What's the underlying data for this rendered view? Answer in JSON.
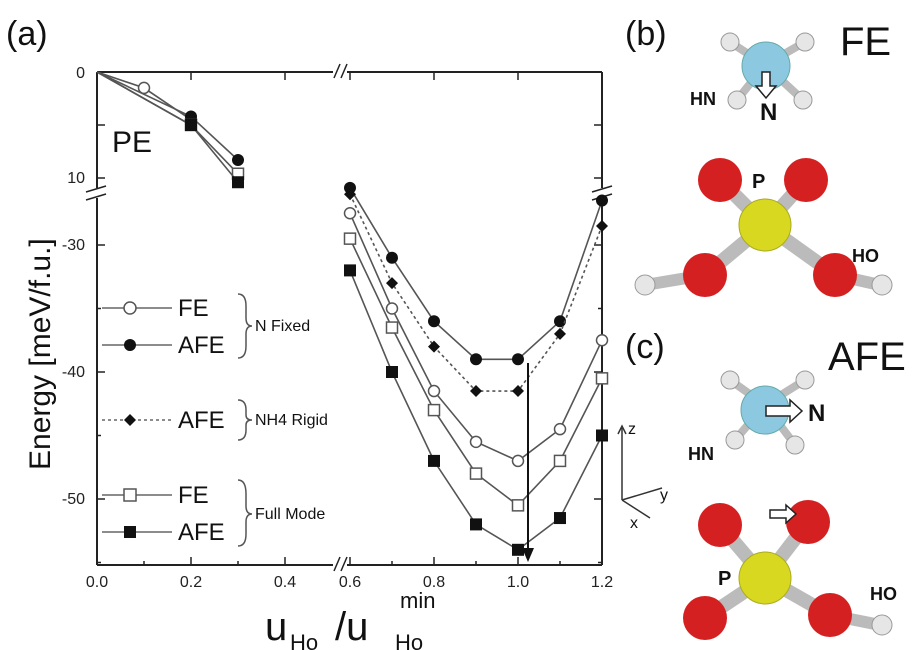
{
  "panels": {
    "a": "(a)",
    "b": "(b)",
    "c": "(c)",
    "b_title": "FE",
    "c_title": "AFE"
  },
  "axes": {
    "xlabel_base": "u",
    "xlabel_sub": "Ho",
    "xlabel_slash": "/u",
    "xlabel_sup": "min",
    "xlabel_sub2": "Ho",
    "ylabel": "Energy [meV/f.u.]",
    "x_ticks": [
      "0.0",
      "0.2",
      "0.4",
      "0.6",
      "0.8",
      "1.0",
      "1.2"
    ],
    "y_ticks_top": [
      "0",
      "10"
    ],
    "y_ticks_bottom": [
      "-30",
      "-40",
      "-50"
    ]
  },
  "inset_label": "PE",
  "legend": {
    "groups": [
      {
        "rows": [
          "FE",
          "AFE"
        ],
        "brace": "N Fixed"
      },
      {
        "rows": [
          "AFE"
        ],
        "brace": "NH4 Rigid"
      },
      {
        "rows": [
          "FE",
          "AFE"
        ],
        "brace": "Full Mode"
      }
    ]
  },
  "molecules": {
    "b": {
      "N": "N",
      "HN": "HN",
      "P": "P",
      "HO": "HO"
    },
    "c": {
      "N": "N",
      "HN": "HN",
      "P": "P",
      "HO": "HO"
    }
  },
  "coord_axes": {
    "z": "z",
    "y": "y",
    "x": "x"
  },
  "colors": {
    "line": "#555555",
    "oxygen": "#d42020",
    "phosphorus": "#d8d820",
    "nitrogen": "#8cc8e0",
    "hydrogen": "#e6e6e6"
  },
  "chart_data": {
    "type": "line",
    "xlabel": "uHo/uHo^min",
    "ylabel": "Energy [meV/f.u.]",
    "xlim": [
      0.0,
      1.2
    ],
    "ylim_top": [
      0,
      10
    ],
    "ylim_bottom": [
      -55,
      -25
    ],
    "series": [
      {
        "name": "FE",
        "group": "N Fixed",
        "marker": "open-circle",
        "x": [
          0.0,
          0.1,
          0.2,
          0.3,
          0.6,
          0.7,
          0.8,
          0.9,
          1.0,
          1.1,
          1.2
        ],
        "y": [
          0,
          -1.5,
          -4.5,
          null,
          -27.5,
          -35,
          -41.5,
          -45.5,
          -47,
          -44.5,
          -37.5
        ]
      },
      {
        "name": "AFE",
        "group": "N Fixed",
        "marker": "filled-circle",
        "x": [
          0.0,
          0.2,
          0.3,
          0.6,
          0.7,
          0.8,
          0.9,
          1.0,
          1.1,
          1.2
        ],
        "y": [
          0,
          -4.2,
          -8.3,
          -25.5,
          -31,
          -36,
          -39,
          -39,
          -36,
          -26.5
        ]
      },
      {
        "name": "AFE",
        "group": "NH4 Rigid",
        "marker": "filled-diamond",
        "dashed": true,
        "x": [
          0.6,
          0.7,
          0.8,
          0.9,
          1.0,
          1.1,
          1.2
        ],
        "y": [
          -26,
          -33,
          -38,
          -41.5,
          -41.5,
          -37,
          -28.5
        ]
      },
      {
        "name": "FE",
        "group": "Full Mode",
        "marker": "open-square",
        "x": [
          0.0,
          0.2,
          0.3,
          0.6,
          0.7,
          0.8,
          0.9,
          1.0,
          1.1,
          1.2
        ],
        "y": [
          0,
          -5,
          -9.6,
          -29.5,
          -36.5,
          -43,
          -48,
          -50.5,
          -47,
          -40.5
        ]
      },
      {
        "name": "AFE",
        "group": "Full Mode",
        "marker": "filled-square",
        "x": [
          0.0,
          0.2,
          0.3,
          0.6,
          0.7,
          0.8,
          0.9,
          1.0,
          1.1,
          1.2
        ],
        "y": [
          0,
          -5,
          -10.4,
          -32,
          -40,
          -47,
          -52,
          -54,
          -51.5,
          -45
        ]
      }
    ]
  }
}
